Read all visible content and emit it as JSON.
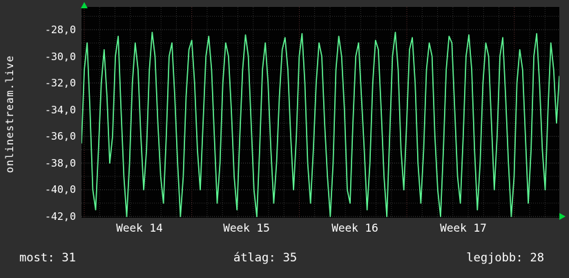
{
  "watermark": "onlinestream.live",
  "footer": {
    "most": "most: 31",
    "atlag": "átlag: 35",
    "legjobb": "legjobb: 28"
  },
  "chart_data": {
    "type": "line",
    "title": "",
    "xlabel": "",
    "ylabel": "",
    "watermark": "onlinestream.live",
    "xticks": [
      "Week 14",
      "Week 15",
      "Week 16",
      "Week 17"
    ],
    "yticks": [
      "-28,0",
      "-30,0",
      "-32,0",
      "-34,0",
      "-36,0",
      "-38,0",
      "-40,0",
      "-42,0"
    ],
    "ytick_values": [
      -28,
      -30,
      -32,
      -34,
      -36,
      -38,
      -40,
      -42
    ],
    "ylim": [
      -42.1,
      -26.3
    ],
    "grid": true,
    "legend": "none",
    "summary": {
      "most": 31,
      "atlag": 35,
      "legjobb": 28
    },
    "colors": {
      "line": "#5df593",
      "background": "#2e2e2e",
      "plot_background": "#020202",
      "grid_minor": "#333333",
      "grid_major": "#474747",
      "grid_week": "#5e2f2f",
      "text": "#ffffff",
      "arrow": "#00d93c"
    },
    "series": [
      {
        "name": "onlinestream.live",
        "values": [
          -36.5,
          -31,
          -29,
          -34,
          -40,
          -41.5,
          -37,
          -32,
          -29.5,
          -33,
          -38,
          -36,
          -30,
          -28.5,
          -34,
          -39,
          -42,
          -38,
          -32,
          -29,
          -31,
          -36,
          -40,
          -37,
          -31,
          -28.2,
          -30,
          -35,
          -39,
          -41,
          -36,
          -30,
          -29,
          -33,
          -38,
          -42,
          -39,
          -33,
          -29.5,
          -28.8,
          -32,
          -37,
          -40,
          -35,
          -30,
          -28.5,
          -31,
          -36,
          -41,
          -38,
          -32,
          -29,
          -30,
          -34,
          -39,
          -41.5,
          -36,
          -31,
          -28.4,
          -30,
          -35,
          -40,
          -42,
          -37,
          -31,
          -29,
          -32,
          -37,
          -41,
          -38,
          -33,
          -29.5,
          -28.6,
          -31,
          -36,
          -40,
          -36,
          -30,
          -28.3,
          -32,
          -38,
          -41,
          -37,
          -32,
          -29,
          -30,
          -35,
          -39,
          -42,
          -38,
          -31,
          -28.5,
          -30,
          -34,
          -40,
          -41,
          -35,
          -30,
          -29,
          -33,
          -37,
          -41.5,
          -38,
          -32,
          -28.8,
          -29.5,
          -34,
          -39,
          -42,
          -36,
          -30,
          -28.2,
          -31,
          -37,
          -40,
          -35,
          -29.5,
          -28.6,
          -32,
          -38,
          -41,
          -37,
          -31,
          -29,
          -30,
          -36,
          -40,
          -42,
          -37,
          -31,
          -28.5,
          -29,
          -34,
          -39,
          -41,
          -36,
          -30,
          -28.4,
          -31,
          -37,
          -41.5,
          -38,
          -32,
          -29,
          -30,
          -35,
          -40,
          -36,
          -30,
          -28.6,
          -33,
          -38,
          -42,
          -39,
          -32,
          -29.5,
          -31,
          -36,
          -41,
          -37,
          -30,
          -28.3,
          -32,
          -37,
          -40,
          -34,
          -29,
          -31,
          -35,
          -31.5
        ]
      }
    ]
  }
}
